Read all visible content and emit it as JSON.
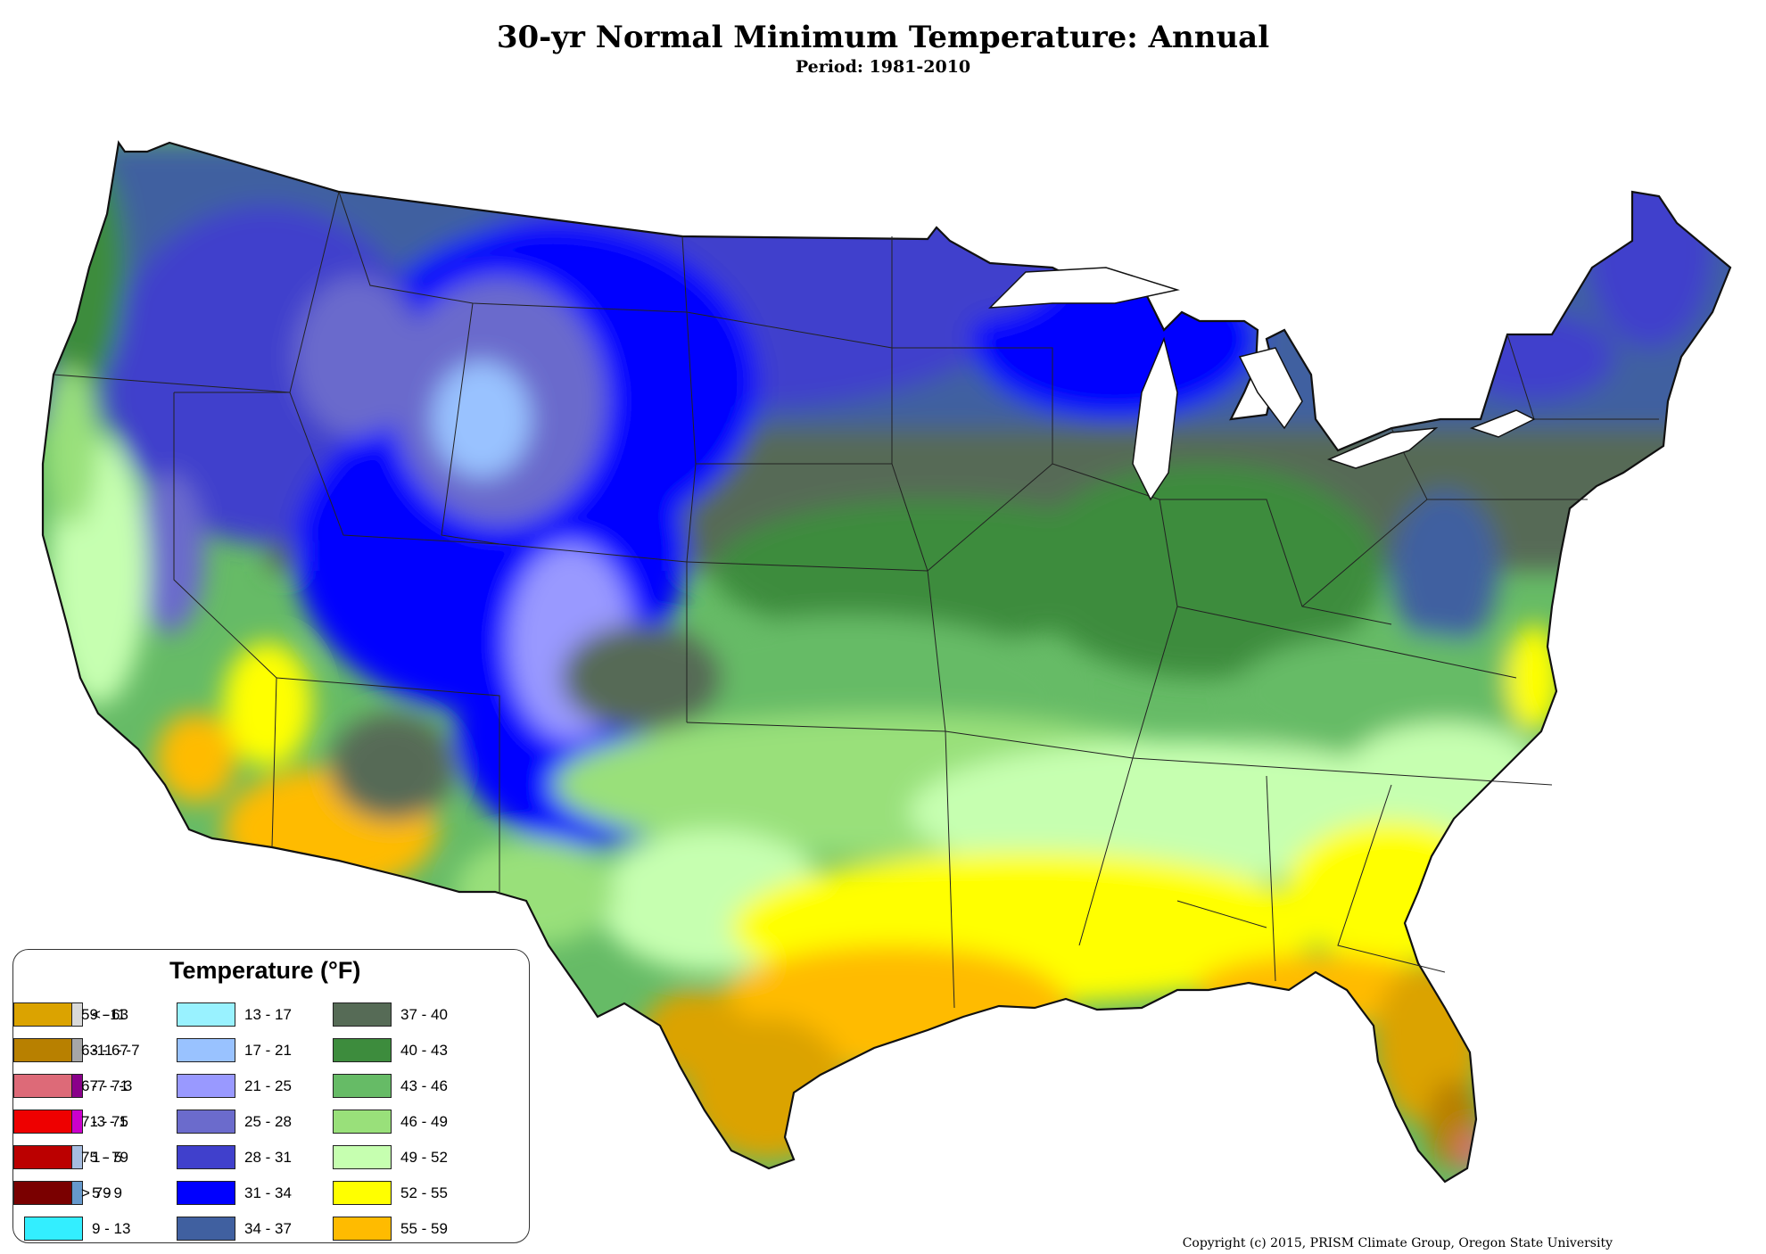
{
  "title": "30-yr Normal Minimum Temperature: Annual",
  "subtitle": "Period: 1981-2010",
  "legend": {
    "title": "Temperature (°F)",
    "items": [
      {
        "label": "< -11",
        "color": "#d9d9d9"
      },
      {
        "label": "-11 - -7",
        "color": "#a6a6a6"
      },
      {
        "label": "-7 - -3",
        "color": "#8a008a"
      },
      {
        "label": "-3 - 1",
        "color": "#cc00cc"
      },
      {
        "label": "1 - 5",
        "color": "#a6bde0"
      },
      {
        "label": "5 - 9",
        "color": "#6699cc"
      },
      {
        "label": "9 - 13",
        "color": "#33eeff"
      },
      {
        "label": "13 - 17",
        "color": "#99f2ff"
      },
      {
        "label": "17 - 21",
        "color": "#99c2ff"
      },
      {
        "label": "21 - 25",
        "color": "#9999ff"
      },
      {
        "label": "25 - 28",
        "color": "#6b6bcc"
      },
      {
        "label": "28 - 31",
        "color": "#4040cc"
      },
      {
        "label": "31 - 34",
        "color": "#0000ff"
      },
      {
        "label": "34 - 37",
        "color": "#4060a0"
      },
      {
        "label": "37 - 40",
        "color": "#566b56"
      },
      {
        "label": "40 - 43",
        "color": "#3d8c3d"
      },
      {
        "label": "43 - 46",
        "color": "#66bb66"
      },
      {
        "label": "46 - 49",
        "color": "#99e07a"
      },
      {
        "label": "49 - 52",
        "color": "#c6ffb0"
      },
      {
        "label": "52 - 55",
        "color": "#ffff00"
      },
      {
        "label": "55 - 59",
        "color": "#ffbb00"
      },
      {
        "label": "59 - 63",
        "color": "#dba300"
      },
      {
        "label": "63 - 67",
        "color": "#b88000"
      },
      {
        "label": "67 - 71",
        "color": "#dd6a78"
      },
      {
        "label": "71 - 75",
        "color": "#ee0000"
      },
      {
        "label": "75 - 79",
        "color": "#bb0000"
      },
      {
        "label": "> 79",
        "color": "#7a0000"
      }
    ]
  },
  "copyright": "Copyright (c) 2015, PRISM Climate Group, Oregon State University"
}
